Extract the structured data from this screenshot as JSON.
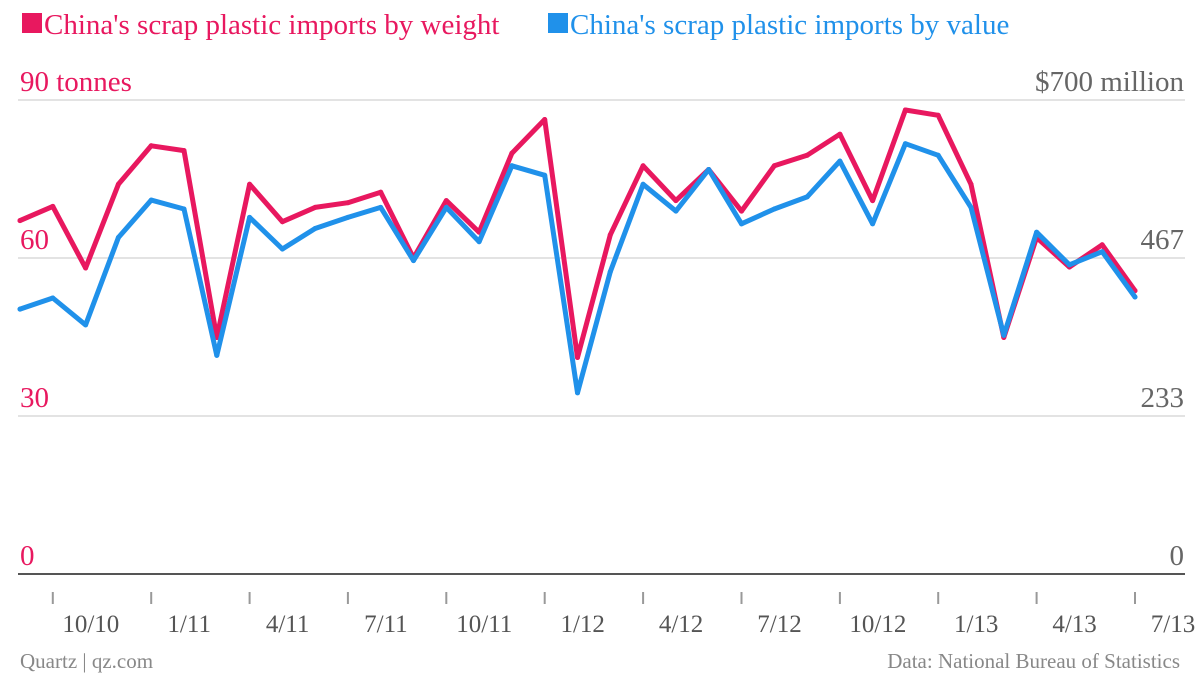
{
  "chart_data": {
    "type": "line",
    "legend": [
      {
        "label": "China's scrap plastic imports by weight",
        "color": "#e8185f"
      },
      {
        "label": "China's scrap plastic imports by value",
        "color": "#2091ea"
      }
    ],
    "left_axis": {
      "ylim": [
        0,
        90
      ],
      "tick_values": [
        0,
        30,
        60,
        90
      ],
      "tick_labels": [
        "0",
        "30",
        "60",
        "90 tonnes"
      ],
      "color": "#e8185f"
    },
    "right_axis": {
      "ylim": [
        0,
        700
      ],
      "tick_values": [
        0,
        233.3,
        466.7,
        700
      ],
      "tick_labels": [
        "0",
        "233",
        "467",
        "$700 million"
      ],
      "color": "#666666"
    },
    "x_ticks": [
      "10/10",
      "1/11",
      "4/11",
      "7/11",
      "10/11",
      "1/12",
      "4/12",
      "7/12",
      "10/12",
      "1/13",
      "4/13",
      "7/13"
    ],
    "grid": true,
    "series": [
      {
        "name": "China's scrap plastic imports by weight",
        "color": "#e8185f",
        "axis": "left",
        "values": [
          67.1,
          69.8,
          58.1,
          74.0,
          81.3,
          80.4,
          44.9,
          74.0,
          66.9,
          69.6,
          70.5,
          72.5,
          60.0,
          70.9,
          64.9,
          79.9,
          86.3,
          41.1,
          64.4,
          77.5,
          70.9,
          76.8,
          68.9,
          77.5,
          79.5,
          83.5,
          70.9,
          88.1,
          87.1,
          74.0,
          44.9,
          63.9,
          58.3,
          62.5,
          53.8
        ]
      },
      {
        "name": "China's scrap plastic imports by value",
        "color": "#2091ea",
        "axis": "left",
        "values": [
          50.3,
          52.4,
          47.3,
          63.9,
          71.0,
          69.3,
          41.5,
          67.7,
          61.7,
          65.6,
          67.7,
          69.6,
          59.5,
          69.6,
          63.1,
          77.5,
          75.7,
          34.4,
          57.4,
          74.0,
          68.9,
          76.8,
          66.5,
          69.3,
          71.6,
          78.4,
          66.5,
          81.7,
          79.5,
          69.6,
          45.3,
          64.9,
          58.7,
          61.2,
          52.6
        ]
      }
    ],
    "footer_left": "Quartz | qz.com",
    "footer_right": "Data: National Bureau of Statistics"
  }
}
